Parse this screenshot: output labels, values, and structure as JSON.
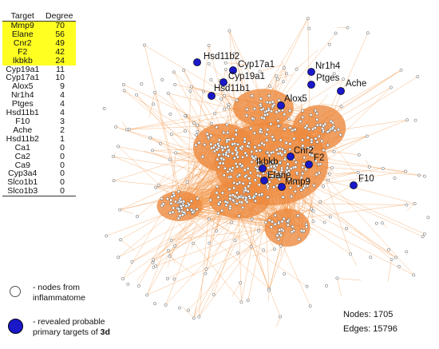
{
  "table": {
    "headers": [
      "Target",
      "Degree"
    ],
    "rows": [
      {
        "target": "Mmp9",
        "degree": "70",
        "highlight": true
      },
      {
        "target": "Elane",
        "degree": "56",
        "highlight": true
      },
      {
        "target": "Cnr2",
        "degree": "49",
        "highlight": true
      },
      {
        "target": "F2",
        "degree": "42",
        "highlight": true
      },
      {
        "target": "Ikbkb",
        "degree": "24",
        "highlight": true
      },
      {
        "target": "Cyp19a1",
        "degree": "11",
        "highlight": false
      },
      {
        "target": "Cyp17a1",
        "degree": "10",
        "highlight": false
      },
      {
        "target": "Alox5",
        "degree": "9",
        "highlight": false
      },
      {
        "target": "Nr1h4",
        "degree": "4",
        "highlight": false
      },
      {
        "target": "Ptges",
        "degree": "4",
        "highlight": false
      },
      {
        "target": "Hsd11b1",
        "degree": "4",
        "highlight": false
      },
      {
        "target": "F10",
        "degree": "3",
        "highlight": false
      },
      {
        "target": "Ache",
        "degree": "2",
        "highlight": false
      },
      {
        "target": "Hsd11b2",
        "degree": "1",
        "highlight": false
      },
      {
        "target": "Ca1",
        "degree": "0",
        "highlight": false
      },
      {
        "target": "Ca2",
        "degree": "0",
        "highlight": false
      },
      {
        "target": "Ca9",
        "degree": "0",
        "highlight": false
      },
      {
        "target": "Cyp3a4",
        "degree": "0",
        "highlight": false
      },
      {
        "target": "Slco1b1",
        "degree": "0",
        "highlight": false
      },
      {
        "target": "Slco1b3",
        "degree": "0",
        "highlight": false
      }
    ],
    "highlight_color": "#ffff22"
  },
  "targets": [
    "Hsd11b2",
    "Cyp17a1",
    "Cyp19a1",
    "Hsd11b1",
    "Nr1h4",
    "Ptges",
    "Ache",
    "Alox5",
    "Cnr2",
    "Ikbkb",
    "F2",
    "Elane",
    "Mmp9",
    "F10"
  ],
  "legend": {
    "white_line1": "- nodes from",
    "white_line2": "inflammatome",
    "blue_line1": "- revealed probable",
    "blue_line2_prefix": "primary targets of ",
    "blue_line2_bold": "3d"
  },
  "stats": {
    "nodes_label": "Nodes: 1705",
    "edges_label": "Edges: 15796"
  },
  "colors": {
    "edge": "#f39a4e",
    "dense_core": "#ec8a3e",
    "target_node": "#1a18c8",
    "background_node": "#ffffff"
  }
}
